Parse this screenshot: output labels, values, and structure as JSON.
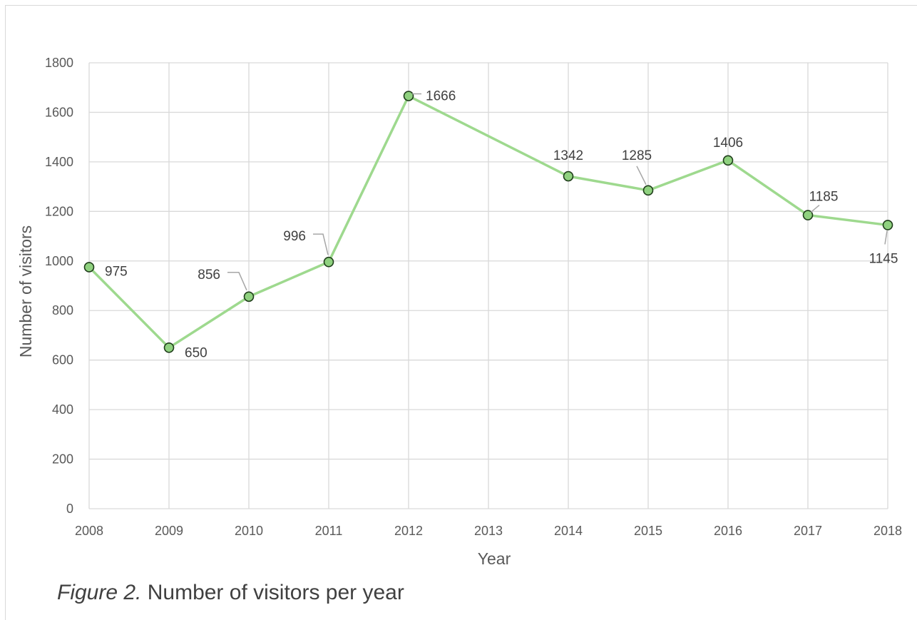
{
  "chart_data": {
    "type": "line",
    "xlabel": "Year",
    "ylabel": "Number of visitors",
    "ylim": [
      0,
      1800
    ],
    "yticks": [
      "0",
      "200",
      "400",
      "600",
      "800",
      "1000",
      "1200",
      "1400",
      "1600",
      "1800"
    ],
    "categories": [
      "2008",
      "2009",
      "2010",
      "2011",
      "2012",
      "2013",
      "2014",
      "2015",
      "2016",
      "2017",
      "2018"
    ],
    "series": [
      {
        "values": [
          975,
          650,
          856,
          996,
          1666,
          null,
          1342,
          1285,
          1406,
          1185,
          1145
        ]
      }
    ],
    "grid": true,
    "line_color": "#9ed98e",
    "marker_color": "#8fd17f"
  },
  "caption": {
    "prefix": "Figure 2.",
    "text": " Number of visitors per year"
  }
}
